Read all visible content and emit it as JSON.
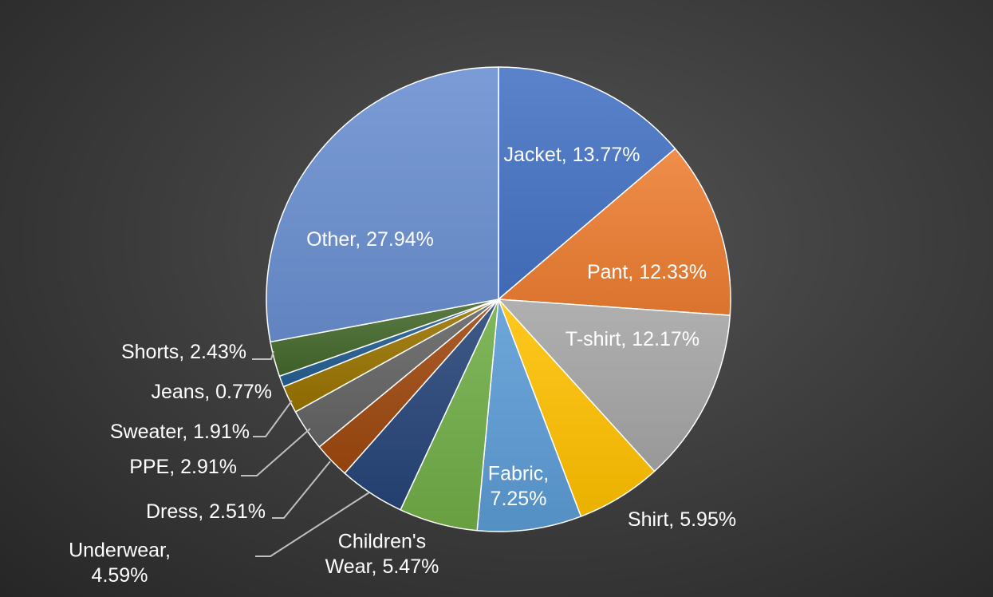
{
  "chart_data": {
    "type": "pie",
    "title": "",
    "start_angle_deg": 0,
    "direction": "clockwise",
    "slices": [
      {
        "label": "Jacket",
        "value": 13.77,
        "value_text": "13.77%",
        "color": "#4472c4"
      },
      {
        "label": "Pant",
        "value": 12.33,
        "value_text": "12.33%",
        "color": "#ed7d31"
      },
      {
        "label": "T-shirt",
        "value": 12.17,
        "value_text": "12.17%",
        "color": "#a5a5a5"
      },
      {
        "label": "Shirt",
        "value": 5.95,
        "value_text": "5.95%",
        "color": "#ffc000"
      },
      {
        "label": "Fabric",
        "value": 7.25,
        "value_text": "7.25%",
        "color": "#5b9bd5"
      },
      {
        "label": "Children's Wear",
        "value": 5.47,
        "value_text": "5.47%",
        "color": "#70ad47"
      },
      {
        "label": "Underwear",
        "value": 4.59,
        "value_text": "4.59%",
        "color": "#264478"
      },
      {
        "label": "Dress",
        "value": 2.51,
        "value_text": "2.51%",
        "color": "#9e480e"
      },
      {
        "label": "PPE",
        "value": 2.91,
        "value_text": "2.91%",
        "color": "#636363"
      },
      {
        "label": "Sweater",
        "value": 1.91,
        "value_text": "1.91%",
        "color": "#997300"
      },
      {
        "label": "Jeans",
        "value": 0.77,
        "value_text": "0.77%",
        "color": "#255e91"
      },
      {
        "label": "Shorts",
        "value": 2.43,
        "value_text": "2.43%",
        "color": "#43682b"
      },
      {
        "label": "Other",
        "value": 27.94,
        "value_text": "27.94%",
        "color": "#698ed0"
      }
    ]
  }
}
